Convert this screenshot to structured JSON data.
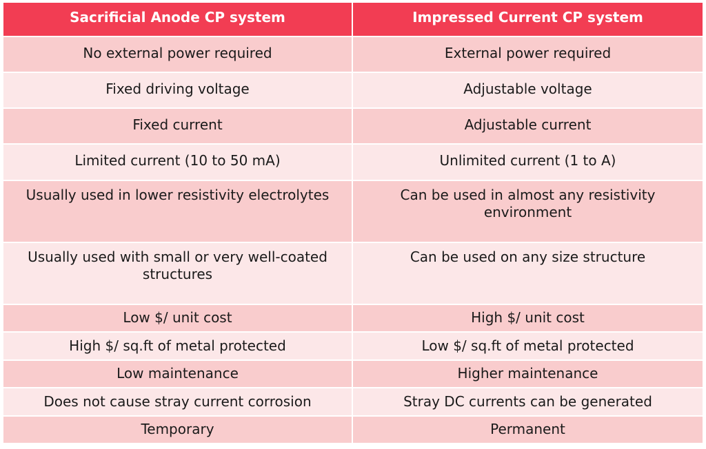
{
  "headers": {
    "sacrificial": "Sacrificial Anode CP system",
    "impressed": "Impressed Current CP system"
  },
  "colors": {
    "header": "#f23d53",
    "row_odd": "#f9cccd",
    "row_even": "#fce7e8"
  },
  "rows": [
    {
      "sacrificial": "No external power required",
      "impressed": "External power required"
    },
    {
      "sacrificial": "Fixed driving voltage",
      "impressed": "Adjustable voltage"
    },
    {
      "sacrificial": "Fixed current",
      "impressed": "Adjustable current"
    },
    {
      "sacrificial": "Limited current (10 to 50 mA)",
      "impressed": "Unlimited current (1 to A)"
    },
    {
      "sacrificial": "Usually used in lower resistivity electrolytes",
      "impressed": "Can be used in almost any resistivity environment"
    },
    {
      "sacrificial": "Usually used with small or very well-coated structures",
      "impressed": "Can be used on any size structure"
    },
    {
      "sacrificial": "Low $/ unit cost",
      "impressed": "High $/ unit cost"
    },
    {
      "sacrificial": "High $/ sq.ft of metal protected",
      "impressed": "Low $/ sq.ft of metal protected"
    },
    {
      "sacrificial": "Low maintenance",
      "impressed": "Higher maintenance"
    },
    {
      "sacrificial": "Does not cause stray current corrosion",
      "impressed": "Stray DC currents can be generated"
    },
    {
      "sacrificial": "Temporary",
      "impressed": "Permanent"
    }
  ]
}
